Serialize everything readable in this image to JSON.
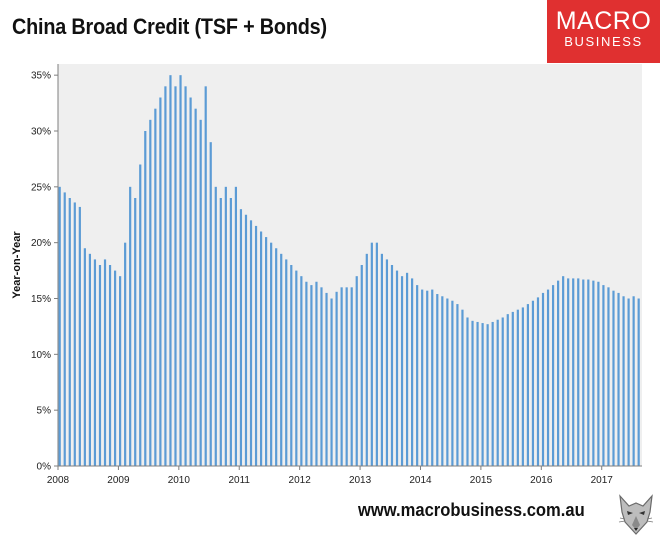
{
  "header": {
    "title": "China Broad Credit (TSF + Bonds)",
    "logo_line1": "MACRO",
    "logo_line2": "BUSINESS"
  },
  "footer": {
    "website": "www.macrobusiness.com.au"
  },
  "colors": {
    "bar": "#5b9bd5",
    "plot_background": "#efefef",
    "brand_red": "#e03030"
  },
  "icons": {
    "mascot": "wolf-icon"
  },
  "chart_data": {
    "type": "bar",
    "title": "China Broad Credit (TSF + Bonds)",
    "xlabel": "",
    "ylabel": "Year-on-Year",
    "ylim": [
      0,
      0.36
    ],
    "yticks": [
      0,
      0.05,
      0.1,
      0.15,
      0.2,
      0.25,
      0.3,
      0.35
    ],
    "ytick_labels": [
      "0%",
      "5%",
      "10%",
      "15%",
      "20%",
      "25%",
      "30%",
      "35%"
    ],
    "xticks": [
      "2008",
      "2009",
      "2010",
      "2011",
      "2012",
      "2013",
      "2014",
      "2015",
      "2016",
      "2017"
    ],
    "grid": false,
    "legend": "none",
    "frequency": "monthly",
    "start": "2008-01",
    "series": [
      {
        "values": [
          0.25,
          0.245,
          0.24,
          0.236,
          0.232,
          0.195,
          0.19,
          0.185,
          0.18,
          0.185,
          0.18,
          0.175,
          0.17,
          0.2,
          0.25,
          0.24,
          0.27,
          0.3,
          0.31,
          0.32,
          0.33,
          0.34,
          0.35,
          0.34,
          0.35,
          0.34,
          0.33,
          0.32,
          0.31,
          0.34,
          0.29,
          0.25,
          0.24,
          0.25,
          0.24,
          0.25,
          0.23,
          0.225,
          0.22,
          0.215,
          0.21,
          0.205,
          0.2,
          0.195,
          0.19,
          0.185,
          0.18,
          0.175,
          0.17,
          0.165,
          0.162,
          0.165,
          0.16,
          0.155,
          0.15,
          0.156,
          0.16,
          0.16,
          0.16,
          0.17,
          0.18,
          0.19,
          0.2,
          0.2,
          0.19,
          0.185,
          0.18,
          0.175,
          0.17,
          0.173,
          0.168,
          0.162,
          0.158,
          0.157,
          0.158,
          0.154,
          0.152,
          0.15,
          0.148,
          0.145,
          0.14,
          0.133,
          0.13,
          0.129,
          0.128,
          0.127,
          0.129,
          0.131,
          0.133,
          0.136,
          0.138,
          0.14,
          0.142,
          0.145,
          0.148,
          0.151,
          0.155,
          0.158,
          0.162,
          0.166,
          0.17,
          0.168,
          0.168,
          0.168,
          0.167,
          0.167,
          0.166,
          0.165,
          0.162,
          0.16,
          0.157,
          0.155,
          0.152,
          0.15,
          0.152,
          0.15
        ]
      }
    ]
  }
}
